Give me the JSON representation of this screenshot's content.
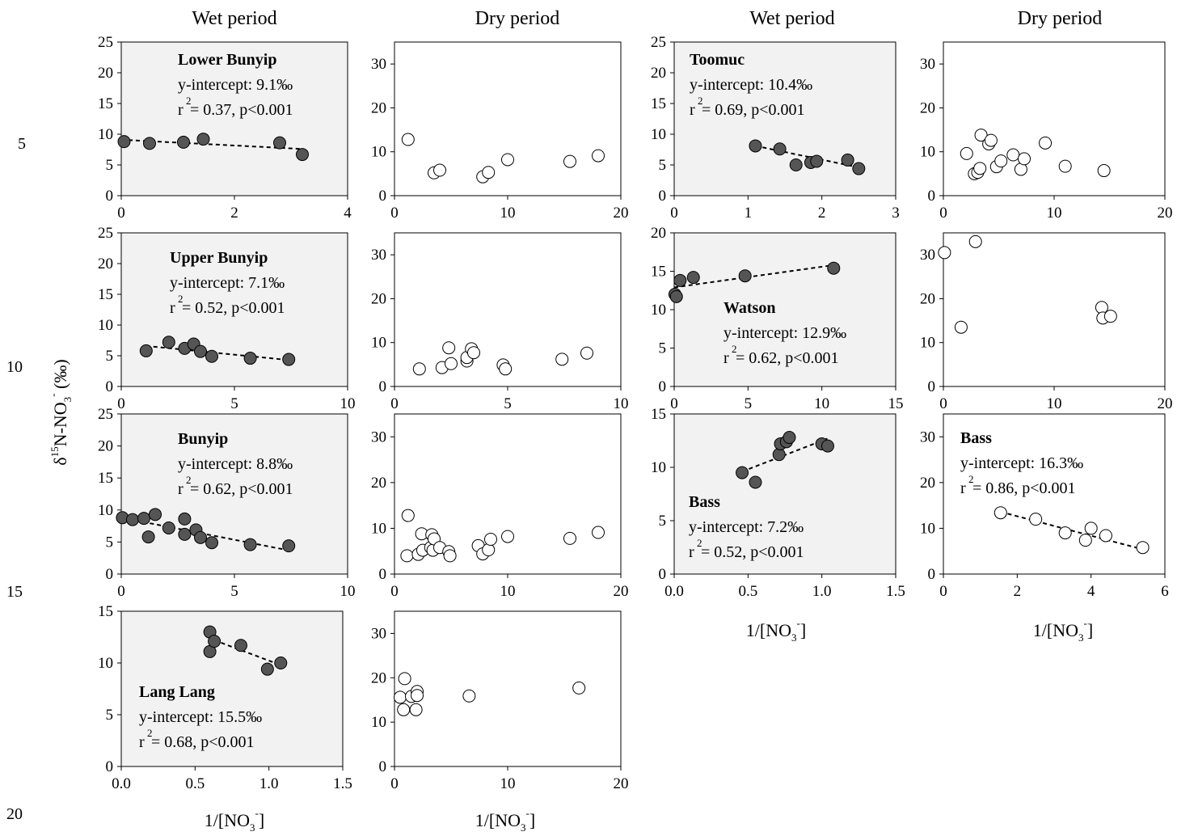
{
  "headers": [
    "Wet period",
    "Dry period",
    "Wet period",
    "Dry period"
  ],
  "line_numbers": [
    "5",
    "10",
    "15",
    "20"
  ],
  "y_axis_label": {
    "delta": "δ",
    "sup": "15",
    "main": "N-NO",
    "sub": "3",
    "sup2": "-",
    "tail": " (‰)"
  },
  "x_axis_label": {
    "main": "1/[NO",
    "sub": "3",
    "sup": "-",
    "tail": "]"
  },
  "colors": {
    "filled_marker": "#555555",
    "open_marker": "#ffffff",
    "wet_bg": "#f2f2f2",
    "axis": "#000000"
  },
  "chart_data": [
    {
      "id": "lower-bunyip-wet",
      "type": "scatter",
      "period": "Wet period",
      "background": "shaded",
      "marker": "filled",
      "x": [
        0.05,
        0.5,
        1.1,
        1.45,
        2.8,
        3.2
      ],
      "y": [
        8.8,
        8.5,
        8.7,
        9.2,
        8.6,
        6.7
      ],
      "xlim": [
        0,
        4
      ],
      "ylim": [
        0,
        25
      ],
      "xticks": [
        0,
        2,
        4
      ],
      "yticks": [
        0,
        5,
        10,
        15,
        20,
        25
      ],
      "trendline": {
        "x": [
          0,
          3.2
        ],
        "y": [
          9.1,
          7.6
        ]
      },
      "annotation": {
        "site": "Lower Bunyip",
        "intercept": "y-intercept: 9.1‰",
        "r": "r",
        "r_sup": "2",
        "stats": " = 0.37, p<0.001"
      }
    },
    {
      "id": "lower-bunyip-dry",
      "type": "scatter",
      "period": "Dry period",
      "background": "white",
      "marker": "open",
      "x": [
        1.2,
        3.5,
        4.0,
        7.8,
        8.3,
        10.0,
        15.5,
        18.0
      ],
      "y": [
        12.8,
        5.2,
        5.8,
        4.3,
        5.3,
        8.2,
        7.8,
        9.1
      ],
      "xlim": [
        0,
        20
      ],
      "ylim": [
        0,
        35
      ],
      "xticks": [
        0,
        10,
        20
      ],
      "yticks": [
        0,
        10,
        20,
        30
      ]
    },
    {
      "id": "toomuc-wet",
      "type": "scatter",
      "period": "Wet period",
      "background": "shaded",
      "marker": "filled",
      "x": [
        1.1,
        1.43,
        1.65,
        1.85,
        1.93,
        2.35,
        2.5
      ],
      "y": [
        8.1,
        7.6,
        5.0,
        5.4,
        5.6,
        5.8,
        4.4
      ],
      "xlim": [
        0,
        3
      ],
      "ylim": [
        0,
        25
      ],
      "xticks": [
        0,
        1,
        2,
        3
      ],
      "yticks": [
        0,
        5,
        10,
        15,
        20,
        25
      ],
      "trendline": {
        "x": [
          1.1,
          2.5
        ],
        "y": [
          8.1,
          4.6
        ]
      },
      "annotation": {
        "site": "Toomuc",
        "intercept": "y-intercept: 10.4‰",
        "r": "r",
        "r_sup": "2",
        "stats": " = 0.69, p<0.001"
      }
    },
    {
      "id": "toomuc-dry",
      "type": "scatter",
      "period": "Dry period",
      "background": "white",
      "marker": "open",
      "x": [
        2.1,
        2.8,
        3.1,
        3.4,
        3.3,
        4.1,
        4.3,
        4.8,
        5.2,
        6.3,
        7.0,
        7.3,
        9.2,
        11.0,
        14.5
      ],
      "y": [
        9.6,
        5.0,
        5.3,
        13.8,
        6.2,
        11.8,
        12.6,
        6.6,
        7.9,
        9.3,
        6.0,
        8.4,
        12.0,
        6.7,
        5.7
      ],
      "xlim": [
        0,
        20
      ],
      "ylim": [
        0,
        35
      ],
      "xticks": [
        0,
        10,
        20
      ],
      "yticks": [
        0,
        10,
        20,
        30
      ]
    },
    {
      "id": "upper-bunyip-wet",
      "type": "scatter",
      "period": "Wet period",
      "background": "shaded",
      "marker": "filled",
      "x": [
        1.1,
        2.1,
        2.8,
        3.2,
        3.5,
        4.0,
        5.7,
        7.4
      ],
      "y": [
        5.8,
        7.2,
        6.2,
        6.9,
        5.7,
        4.9,
        4.6,
        4.4
      ],
      "xlim": [
        0,
        10
      ],
      "ylim": [
        0,
        25
      ],
      "xticks": [
        0,
        5,
        10
      ],
      "yticks": [
        0,
        5,
        10,
        15,
        20,
        25
      ],
      "trendline": {
        "x": [
          1.1,
          7.4
        ],
        "y": [
          6.6,
          4.3
        ]
      },
      "annotation": {
        "site": "Upper Bunyip",
        "intercept": "y-intercept: 7.1‰",
        "r": "r",
        "r_sup": "2",
        "stats": " = 0.52, p<0.001"
      }
    },
    {
      "id": "upper-bunyip-dry",
      "type": "scatter",
      "period": "Dry period",
      "background": "white",
      "marker": "open",
      "x": [
        1.1,
        2.1,
        2.4,
        2.5,
        3.2,
        3.2,
        3.4,
        3.5,
        4.8,
        4.9,
        7.4,
        8.5
      ],
      "y": [
        4.0,
        4.3,
        8.8,
        5.2,
        5.8,
        6.6,
        8.6,
        7.7,
        4.9,
        4.0,
        6.2,
        7.6
      ],
      "xlim": [
        0,
        10
      ],
      "ylim": [
        0,
        35
      ],
      "xticks": [
        0,
        5,
        10
      ],
      "yticks": [
        0,
        10,
        20,
        30
      ]
    },
    {
      "id": "watson-wet",
      "type": "scatter",
      "period": "Wet period",
      "background": "shaded",
      "marker": "filled",
      "x": [
        0.05,
        0.15,
        0.4,
        1.3,
        4.8,
        10.8
      ],
      "y": [
        12.0,
        11.7,
        13.8,
        14.2,
        14.4,
        15.4
      ],
      "xlim": [
        0,
        15
      ],
      "ylim": [
        0,
        20
      ],
      "xticks": [
        0,
        5,
        10,
        15
      ],
      "yticks": [
        0,
        5,
        10,
        15,
        20
      ],
      "trendline": {
        "x": [
          0,
          10.8
        ],
        "y": [
          12.9,
          15.8
        ]
      },
      "annotation": {
        "site": "Watson",
        "intercept": "y-intercept: 12.9‰",
        "r": "r",
        "r_sup": "2",
        "stats": " = 0.62, p<0.001"
      }
    },
    {
      "id": "watson-dry",
      "type": "scatter",
      "period": "Dry period",
      "background": "white",
      "marker": "open",
      "x": [
        0.1,
        1.6,
        2.9,
        14.3,
        14.4,
        15.1
      ],
      "y": [
        30.5,
        13.5,
        33.0,
        18.0,
        15.6,
        16.0
      ],
      "xlim": [
        0,
        20
      ],
      "ylim": [
        0,
        35
      ],
      "xticks": [
        0,
        10,
        20
      ],
      "yticks": [
        0,
        10,
        20,
        30
      ]
    },
    {
      "id": "bunyip-wet",
      "type": "scatter",
      "period": "Wet period",
      "background": "shaded",
      "marker": "filled",
      "x": [
        0.05,
        0.5,
        1.0,
        1.2,
        1.5,
        2.1,
        2.8,
        2.8,
        3.3,
        3.5,
        4.0,
        5.7,
        7.4
      ],
      "y": [
        8.8,
        8.5,
        8.7,
        5.8,
        9.3,
        7.2,
        8.6,
        6.2,
        6.9,
        5.7,
        4.9,
        4.6,
        4.4
      ],
      "xlim": [
        0,
        10
      ],
      "ylim": [
        0,
        25
      ],
      "xticks": [
        0,
        5,
        10
      ],
      "yticks": [
        0,
        5,
        10,
        15,
        20,
        25
      ],
      "trendline": {
        "x": [
          0,
          7.4
        ],
        "y": [
          8.8,
          3.7
        ]
      },
      "annotation": {
        "site": "Bunyip",
        "intercept": "y-intercept: 8.8‰",
        "r": "r",
        "r_sup": "2",
        "stats": " = 0.62, p<0.001"
      }
    },
    {
      "id": "bunyip-dry",
      "type": "scatter",
      "period": "Dry period",
      "background": "white",
      "marker": "open",
      "x": [
        1.1,
        1.2,
        2.1,
        2.4,
        2.5,
        3.2,
        3.3,
        3.4,
        3.5,
        4.0,
        4.8,
        4.9,
        7.4,
        7.8,
        8.3,
        8.5,
        10.0,
        15.5,
        18.0
      ],
      "y": [
        4.0,
        12.8,
        4.3,
        8.8,
        5.2,
        5.8,
        8.6,
        5.2,
        7.7,
        5.8,
        4.9,
        4.0,
        6.2,
        4.4,
        5.3,
        7.6,
        8.2,
        7.8,
        9.1
      ],
      "xlim": [
        0,
        20
      ],
      "ylim": [
        0,
        35
      ],
      "xticks": [
        0,
        10,
        20
      ],
      "yticks": [
        0,
        10,
        20,
        30
      ]
    },
    {
      "id": "bass-wet",
      "type": "scatter",
      "period": "Wet period",
      "background": "shaded",
      "marker": "filled",
      "x": [
        0.46,
        0.55,
        0.71,
        0.72,
        0.76,
        0.78,
        1.0,
        1.04
      ],
      "y": [
        9.5,
        8.6,
        11.2,
        12.2,
        12.4,
        12.8,
        12.2,
        12.0
      ],
      "xlim": [
        0,
        1.5
      ],
      "ylim": [
        0,
        15
      ],
      "xticks": [
        0.0,
        0.5,
        1.0,
        1.5
      ],
      "xtick_labels": [
        "0.0",
        "0.5",
        "1.0",
        "1.5"
      ],
      "yticks": [
        0,
        5,
        10,
        15
      ],
      "trendline": {
        "x": [
          0.46,
          1.04
        ],
        "y": [
          9.6,
          12.7
        ]
      },
      "annotation": {
        "site": "Bass",
        "intercept": "y-intercept: 7.2‰",
        "r": "r",
        "r_sup": "2",
        "stats": " = 0.52, p<0.001"
      }
    },
    {
      "id": "bass-dry",
      "type": "scatter",
      "period": "Dry period",
      "background": "white",
      "marker": "open",
      "x": [
        1.55,
        2.5,
        3.3,
        3.85,
        4.0,
        4.4,
        5.4
      ],
      "y": [
        13.4,
        12.0,
        9.0,
        7.4,
        10.0,
        8.4,
        5.8
      ],
      "xlim": [
        0,
        6
      ],
      "ylim": [
        0,
        35
      ],
      "xticks": [
        0,
        2,
        4,
        6
      ],
      "yticks": [
        0,
        10,
        20,
        30
      ],
      "trendline": {
        "x": [
          1.55,
          5.4
        ],
        "y": [
          13.6,
          5.4
        ]
      },
      "annotation": {
        "site": "Bass",
        "intercept": "y-intercept: 16.3‰",
        "r": "r",
        "r_sup": "2",
        "stats": " = 0.86, p<0.001"
      }
    },
    {
      "id": "lang-lang-wet",
      "type": "scatter",
      "period": "Wet period",
      "background": "shaded",
      "marker": "filled",
      "x": [
        0.6,
        0.6,
        0.63,
        0.81,
        0.99,
        1.08
      ],
      "y": [
        13.0,
        11.1,
        12.1,
        11.7,
        9.4,
        10.0
      ],
      "xlim": [
        0,
        1.5
      ],
      "ylim": [
        0,
        15
      ],
      "xticks": [
        0.0,
        0.5,
        1.0,
        1.5
      ],
      "xtick_labels": [
        "0.0",
        "0.5",
        "1.0",
        "1.5"
      ],
      "yticks": [
        0,
        5,
        10,
        15
      ],
      "trendline": {
        "x": [
          0.63,
          1.08
        ],
        "y": [
          12.2,
          9.8
        ]
      },
      "annotation": {
        "site": "Lang Lang",
        "intercept": "y-intercept: 15.5‰",
        "r": "r",
        "r_sup": "2",
        "stats": " = 0.68, p<0.001"
      }
    },
    {
      "id": "lang-lang-dry",
      "type": "scatter",
      "period": "Dry period",
      "background": "white",
      "marker": "open",
      "x": [
        0.5,
        0.8,
        0.9,
        1.5,
        1.9,
        2.0,
        2.0,
        6.6,
        16.3
      ],
      "y": [
        15.6,
        12.8,
        19.8,
        15.8,
        12.8,
        16.9,
        16.0,
        15.9,
        17.7
      ],
      "xlim": [
        0,
        20
      ],
      "ylim": [
        0,
        35
      ],
      "xticks": [
        0,
        10,
        20
      ],
      "yticks": [
        0,
        10,
        20,
        30
      ]
    }
  ]
}
